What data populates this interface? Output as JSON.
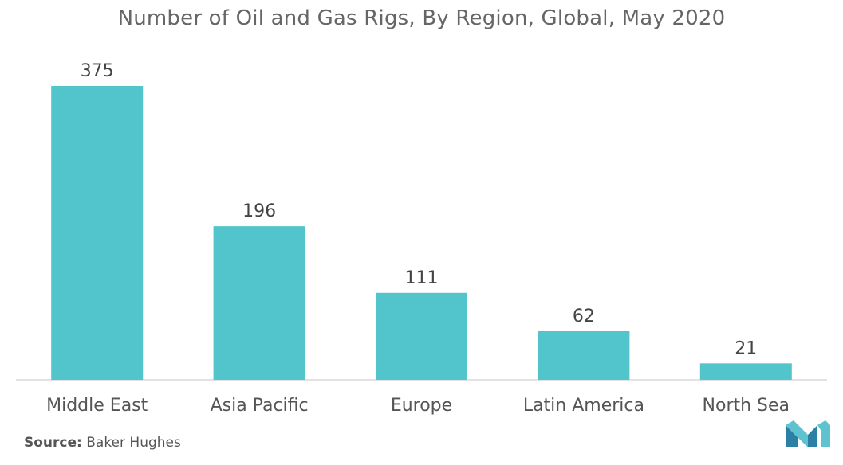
{
  "chart_data": {
    "type": "bar",
    "title": "Number of Oil and Gas Rigs, By Region, Global, May 2020",
    "categories": [
      "Middle East",
      "Asia Pacific",
      "Europe",
      "Latin America",
      "North Sea"
    ],
    "values": [
      375,
      196,
      111,
      62,
      21
    ],
    "data_labels": [
      "375",
      "196",
      "111",
      "62",
      "21"
    ],
    "xlabel": "",
    "ylabel": "",
    "ylim": [
      0,
      375
    ],
    "grid": false,
    "legend": "none",
    "bar_color": "#52c4cb"
  },
  "source": {
    "label": "Source:",
    "text": "Baker Hughes"
  },
  "logo": {
    "icon": "brand-logo-icon",
    "colors": [
      "#2c7fa5",
      "#5fc2cf"
    ]
  }
}
